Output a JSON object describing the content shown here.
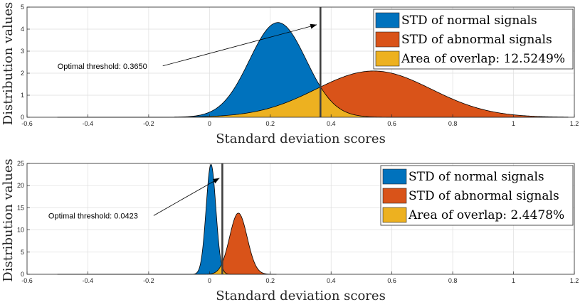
{
  "colors": {
    "normal": "#0072BD",
    "abnormal": "#D95319",
    "overlap": "#EDB120",
    "threshold_line": "#404040"
  },
  "chart_data": [
    {
      "type": "area",
      "xlabel": "Standard deviation scores",
      "ylabel": "Distribution values",
      "xlim": [
        -0.6,
        1.2
      ],
      "ylim": [
        0,
        5
      ],
      "xticks": [
        "-0.6",
        "-0.4",
        "-0.2",
        "0",
        "0.2",
        "0.4",
        "0.6",
        "0.8",
        "1",
        "1.2"
      ],
      "yticks": [
        "0",
        "1",
        "2",
        "3",
        "4",
        "5"
      ],
      "grid": true,
      "curve_x_range": [
        -0.5,
        1.18
      ],
      "series": [
        {
          "name": "STD of normal signals",
          "distribution": "normal",
          "mean": 0.225,
          "std": 0.093,
          "peak": 4.3
        },
        {
          "name": "STD of abnormal signals",
          "distribution": "normal",
          "mean": 0.54,
          "std": 0.19,
          "peak": 2.1
        }
      ],
      "legend": [
        "STD of normal signals",
        "STD of abnormal signals",
        "Area of overlap:  12.5249%"
      ],
      "legend_position": "top-right",
      "threshold": 0.365,
      "annotation": "Optimal threshold: 0.3650",
      "annotation_text_x": -0.5,
      "annotation_text_y": 2.2,
      "arrow_head": [
        0.36,
        4.2
      ]
    },
    {
      "type": "area",
      "xlabel": "Standard deviation scores",
      "ylabel": "Distribution values",
      "xlim": [
        -0.6,
        1.2
      ],
      "ylim": [
        0,
        25
      ],
      "xticks": [
        "-0.6",
        "-0.4",
        "-0.2",
        "0",
        "0.2",
        "0.4",
        "0.6",
        "0.8",
        "1",
        "1.2"
      ],
      "yticks": [
        "0",
        "5",
        "10",
        "15",
        "20",
        "25"
      ],
      "grid": true,
      "curve_x_range": [
        -0.5,
        0.22
      ],
      "series": [
        {
          "name": "STD of normal signals",
          "distribution": "normal",
          "mean": 0.005,
          "std": 0.016,
          "peak": 24.8
        },
        {
          "name": "STD of abnormal signals",
          "distribution": "normal",
          "mean": 0.095,
          "std": 0.029,
          "peak": 13.8
        }
      ],
      "legend": [
        "STD of normal signals",
        "STD of abnormal signals",
        "Area of overlap:  2.4478%"
      ],
      "legend_position": "top-right",
      "threshold": 0.0423,
      "annotation": "Optimal threshold: 0.0423",
      "annotation_text_x": -0.53,
      "annotation_text_y": 12.6,
      "arrow_head": [
        0.04,
        21.7
      ]
    }
  ]
}
